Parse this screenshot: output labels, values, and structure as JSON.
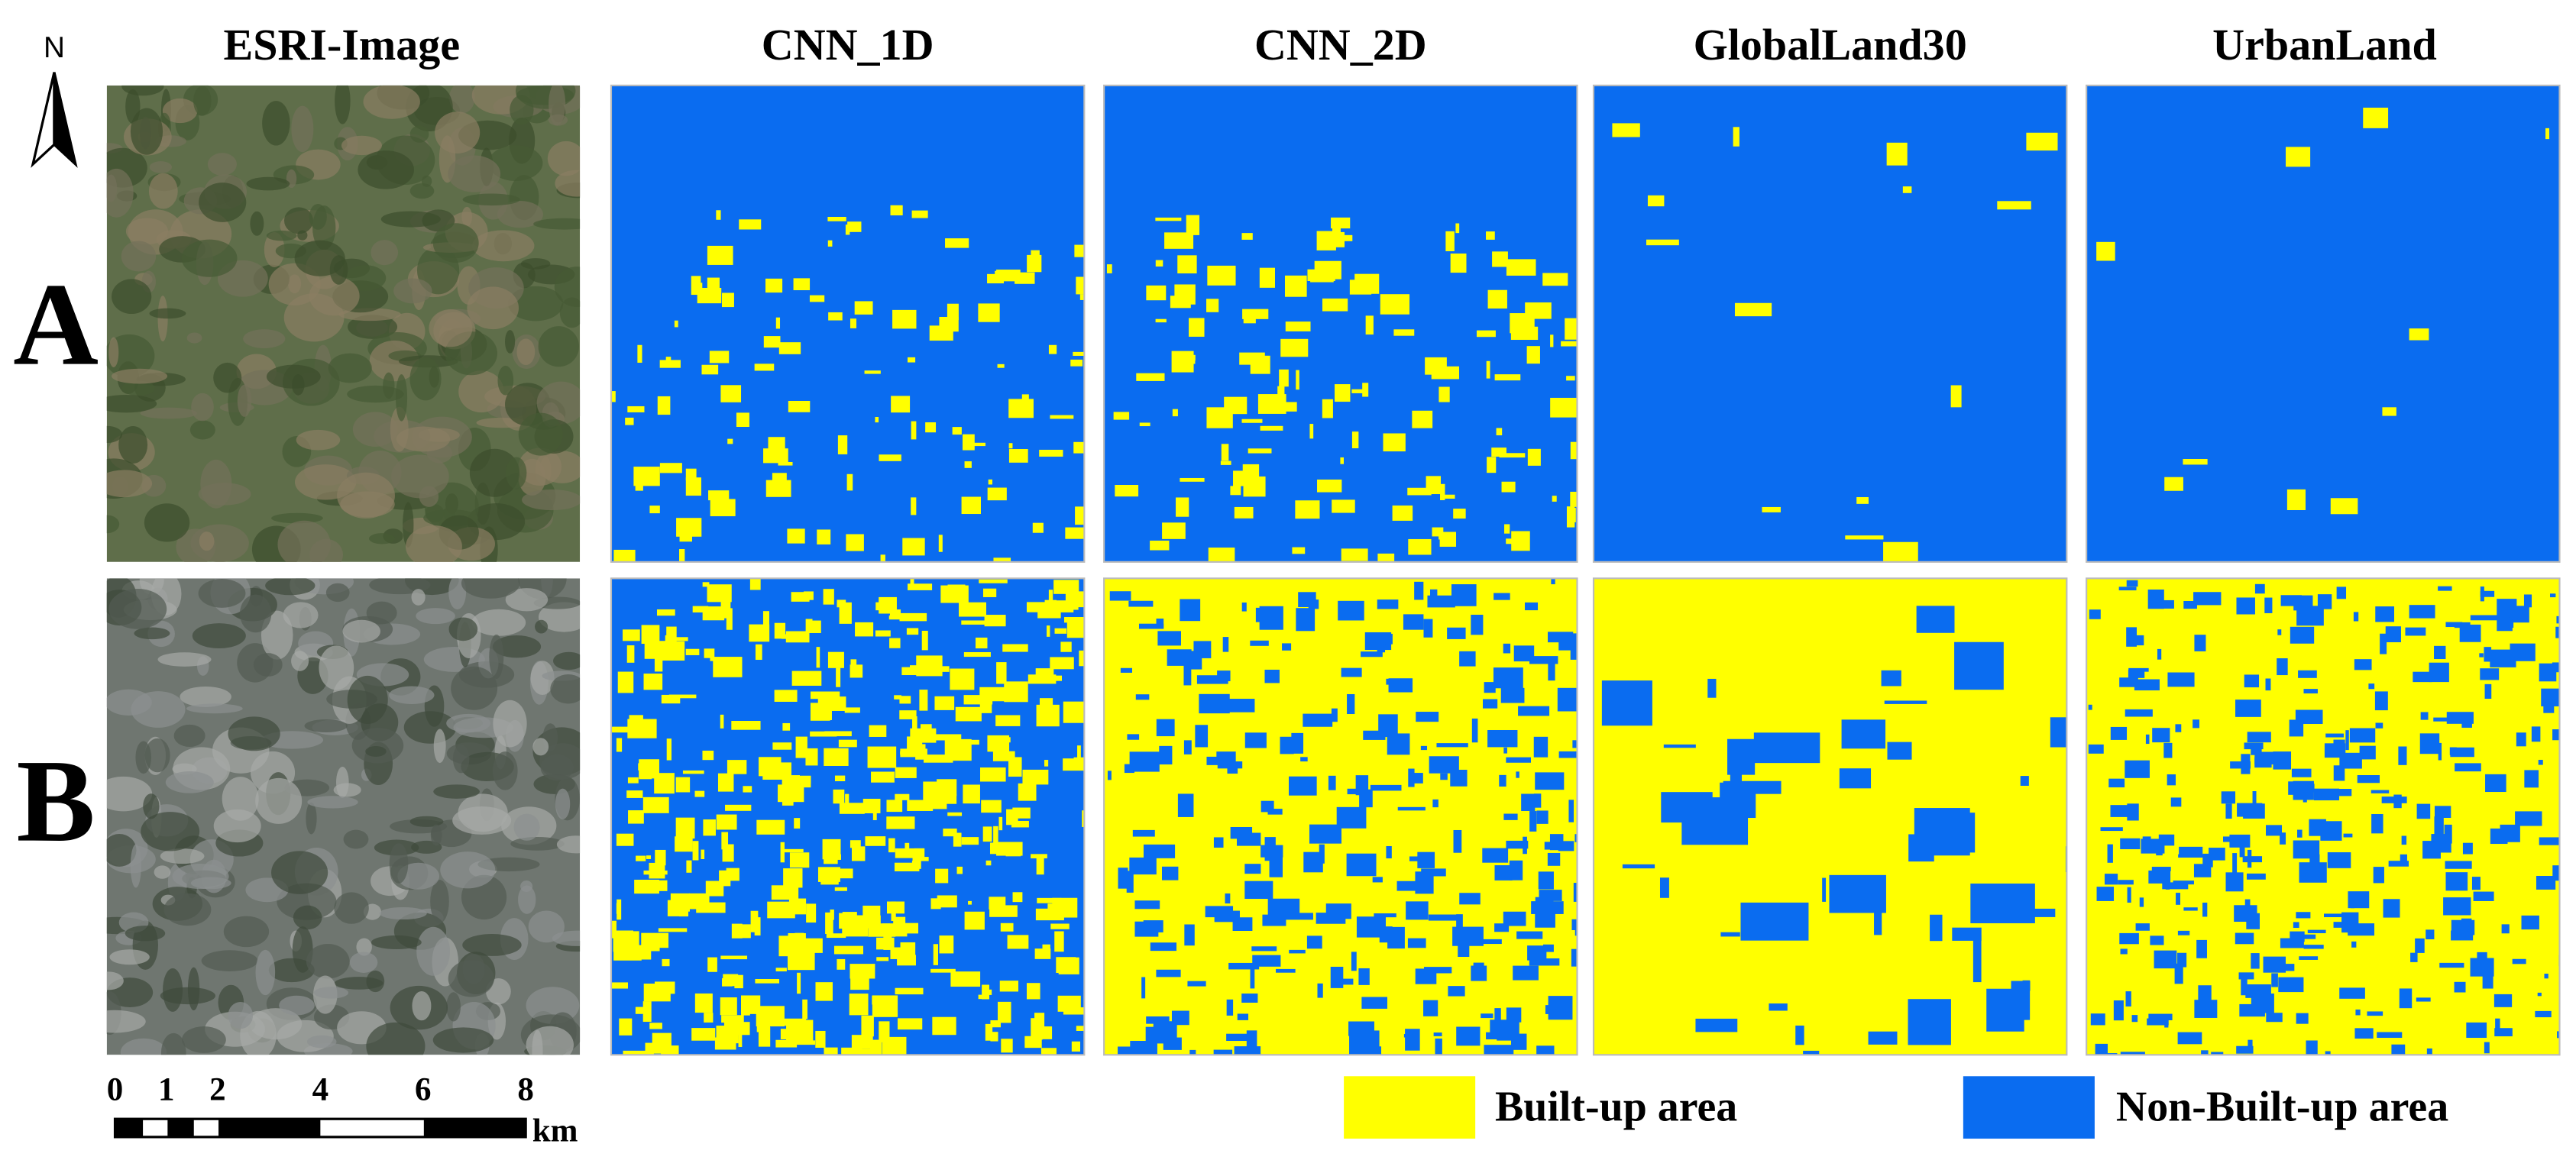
{
  "columns": [
    "ESRI-Image",
    "CNN_1D",
    "CNN_2D",
    "GlobalLand30",
    "UrbanLand"
  ],
  "rows": [
    "A",
    "B"
  ],
  "legend": [
    {
      "label": "Built-up area",
      "color": "#ffff00"
    },
    {
      "label": "Non-Built-up area",
      "color": "#0a6cf0"
    }
  ],
  "scale_bar": {
    "ticks": [
      0,
      1,
      2,
      4,
      6,
      8
    ],
    "unit": "km"
  },
  "north_arrow": "N"
}
